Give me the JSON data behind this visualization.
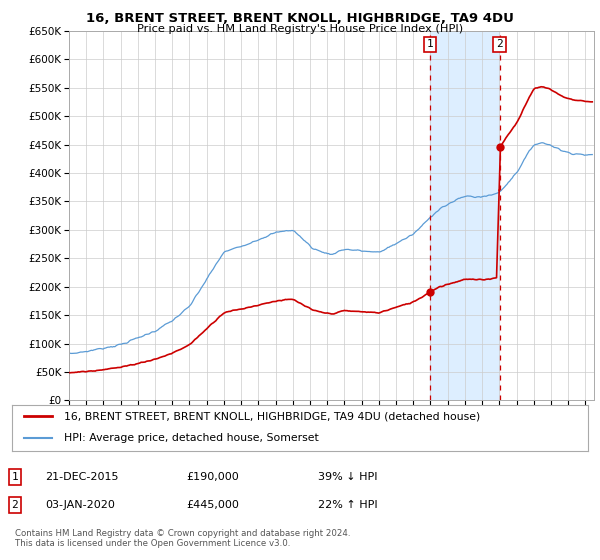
{
  "title": "16, BRENT STREET, BRENT KNOLL, HIGHBRIDGE, TA9 4DU",
  "subtitle": "Price paid vs. HM Land Registry's House Price Index (HPI)",
  "footer": "Contains HM Land Registry data © Crown copyright and database right 2024.\nThis data is licensed under the Open Government Licence v3.0.",
  "legend_entry1": "16, BRENT STREET, BRENT KNOLL, HIGHBRIDGE, TA9 4DU (detached house)",
  "legend_entry2": "HPI: Average price, detached house, Somerset",
  "sale1_date": "21-DEC-2015",
  "sale1_price": 190000,
  "sale1_label": "1",
  "sale1_note": "39% ↓ HPI",
  "sale2_date": "03-JAN-2020",
  "sale2_price": 445000,
  "sale2_label": "2",
  "sale2_note": "22% ↑ HPI",
  "sale1_year": 2015.97,
  "sale2_year": 2020.01,
  "red_color": "#cc0000",
  "blue_color": "#5b9bd5",
  "shade_color": "#ddeeff",
  "background_color": "#ffffff",
  "grid_color": "#cccccc",
  "ylim": [
    0,
    650000
  ],
  "xlim": [
    1995,
    2025.5
  ],
  "ytick_step": 50000
}
